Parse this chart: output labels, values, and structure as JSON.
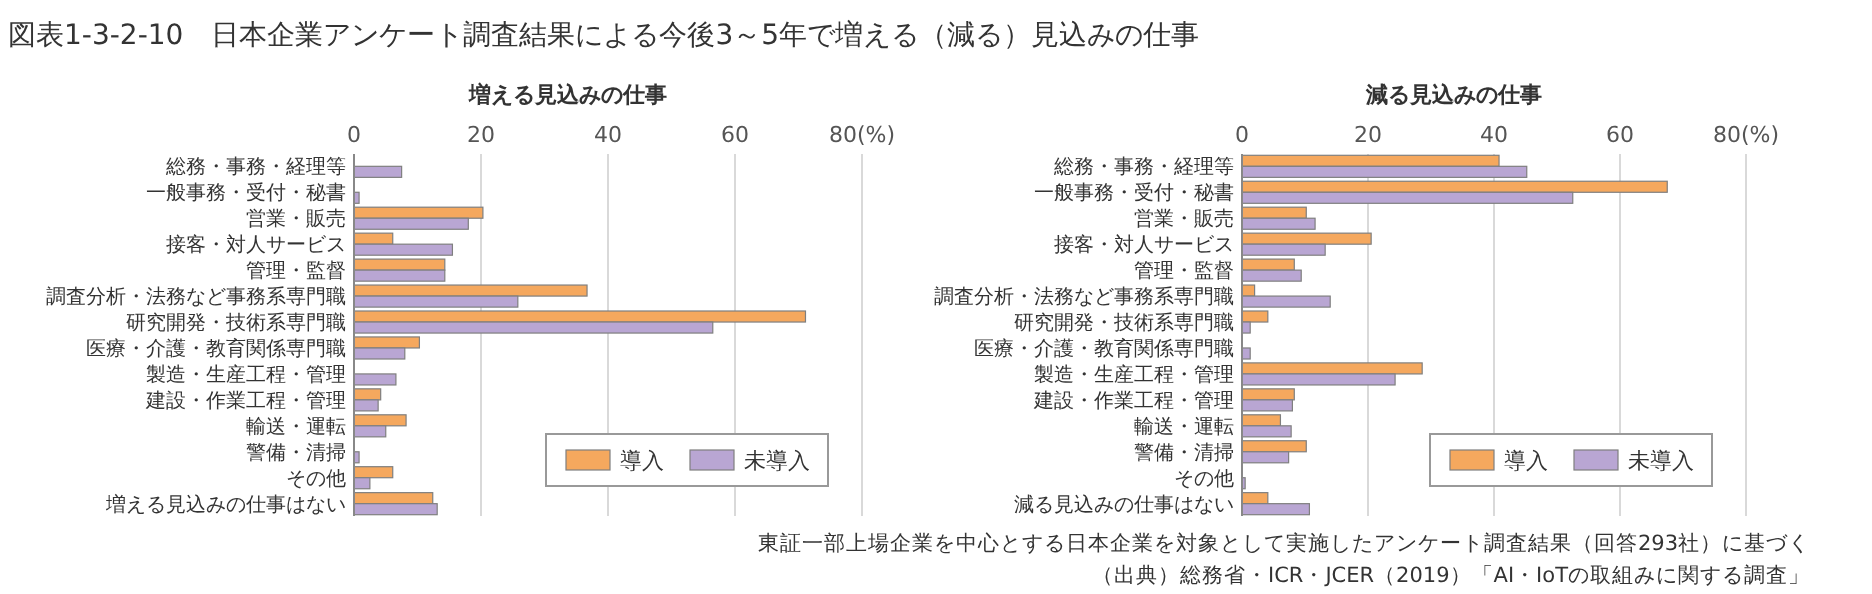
{
  "chart_data": [
    {
      "type": "bar",
      "orientation": "horizontal",
      "title": "増える見込みの仕事",
      "annotations": [
        "図表1-3-2-10　日本企業アンケート調査結果による今後3～5年で増える（減る）見込みの仕事"
      ],
      "categories": [
        "総務・事務・経理等",
        "一般事務・受付・秘書",
        "営業・販売",
        "接客・対人サービス",
        "管理・監督",
        "調査分析・法務など事務系専門職",
        "研究開発・技術系専門職",
        "医療・介護・教育関係専門職",
        "製造・生産工程・管理",
        "建設・作業工程・管理",
        "輸送・運転",
        "警備・清掃",
        "その他",
        "増える見込みの仕事はない"
      ],
      "series": [
        {
          "name": "導入",
          "color": "#f5a85e",
          "values": [
            0,
            0,
            20.3,
            6.1,
            14.3,
            36.7,
            71.1,
            10.3,
            0,
            4.2,
            8.2,
            0,
            6.1,
            12.4
          ]
        },
        {
          "name": "未導入",
          "color": "#b9a6d3",
          "values": [
            7.5,
            0.8,
            18.0,
            15.5,
            14.3,
            25.8,
            56.5,
            8.0,
            6.6,
            3.8,
            5.0,
            0.8,
            2.5,
            13.1
          ]
        }
      ],
      "xlim": [
        0,
        80
      ],
      "xticks": [
        0,
        20,
        40,
        60,
        {
          "value": 80,
          "label": "80(%)"
        }
      ],
      "grid": "x",
      "legend": "bottom right"
    },
    {
      "type": "bar",
      "orientation": "horizontal",
      "title": "減る見込みの仕事",
      "annotations": [
        "東証一部上場企業を中心とする日本企業を対象として実施したアンケート調査結果（回答293社）に基づく",
        "（出典）総務省・ICR・JCER（2019）「AI・IoTの取組みに関する調査」"
      ],
      "categories": [
        "総務・事務・経理等",
        "一般事務・受付・秘書",
        "営業・販売",
        "接客・対人サービス",
        "管理・監督",
        "調査分析・法務など事務系専門職",
        "研究開発・技術系専門職",
        "医療・介護・教育関係専門職",
        "製造・生産工程・管理",
        "建設・作業工程・管理",
        "輸送・運転",
        "警備・清掃",
        "その他",
        "減る見込みの仕事はない"
      ],
      "series": [
        {
          "name": "導入",
          "color": "#f5a85e",
          "values": [
            40.8,
            67.5,
            10.2,
            20.5,
            8.3,
            2.0,
            4.1,
            0,
            28.6,
            8.3,
            6.1,
            10.2,
            0,
            4.1
          ]
        },
        {
          "name": "未導入",
          "color": "#b9a6d3",
          "values": [
            45.2,
            52.5,
            11.6,
            13.2,
            9.4,
            14.0,
            1.3,
            1.3,
            24.3,
            8.0,
            7.8,
            7.4,
            0.5,
            10.7
          ]
        }
      ],
      "xlim": [
        0,
        80
      ],
      "xticks": [
        0,
        20,
        40,
        60,
        {
          "value": 80,
          "label": "80(%)"
        }
      ],
      "grid": "x",
      "legend": "bottom right"
    }
  ]
}
